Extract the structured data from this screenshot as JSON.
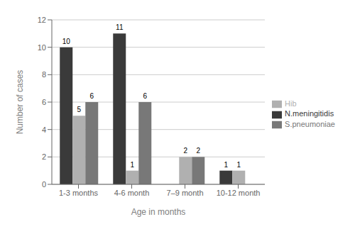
{
  "chart_data": {
    "type": "bar",
    "categories": [
      "1-3 months",
      "4-6 month",
      "7–9 month",
      "10-12 month"
    ],
    "series": [
      {
        "name": "N.meningitidis",
        "color": "#3a3a3a",
        "values": [
          10,
          11,
          0,
          1
        ]
      },
      {
        "name": "Hib",
        "color": "#b0b0b0",
        "values": [
          5,
          1,
          2,
          1
        ]
      },
      {
        "name": "S.pneumoniae",
        "color": "#787878",
        "values": [
          6,
          6,
          2,
          0
        ]
      }
    ],
    "xlabel": "Age in months",
    "ylabel": "Number of cases",
    "ylim": [
      0,
      12
    ],
    "yticks": [
      0,
      2,
      4,
      6,
      8,
      10,
      12
    ],
    "grid": true,
    "legend": "right",
    "data_labels": true
  }
}
